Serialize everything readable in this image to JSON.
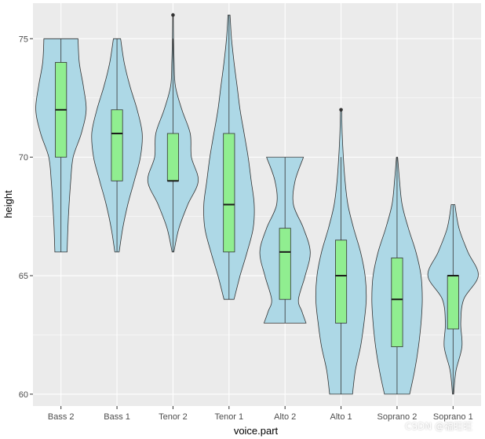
{
  "chart_data": {
    "type": "violin",
    "xlabel": "voice.part",
    "ylabel": "height",
    "ylim": [
      59.5,
      76.5
    ],
    "yticks": [
      60,
      65,
      70,
      75
    ],
    "categories": [
      "Bass 2",
      "Bass 1",
      "Tenor 2",
      "Tenor 1",
      "Alto 2",
      "Alto 1",
      "Soprano 2",
      "Soprano 1"
    ],
    "violin_fill": "#add8e6",
    "box_fill": "#90ee90",
    "panel_bg": "#ebebeb",
    "grid_color": "#ffffff",
    "groups": [
      {
        "name": "Bass 2",
        "min": 66,
        "max": 75,
        "q1": 70,
        "median": 72,
        "q3": 74,
        "whisker_low": 66,
        "whisker_high": 75,
        "outliers": [],
        "density": [
          [
            66,
            0.15
          ],
          [
            67,
            0.17
          ],
          [
            68,
            0.2
          ],
          [
            69,
            0.24
          ],
          [
            70,
            0.3
          ],
          [
            71,
            0.5
          ],
          [
            72,
            0.62
          ],
          [
            73,
            0.55
          ],
          [
            74,
            0.45
          ],
          [
            75,
            0.42
          ]
        ]
      },
      {
        "name": "Bass 1",
        "min": 66,
        "max": 75,
        "q1": 69,
        "median": 71,
        "q3": 72,
        "whisker_low": 66,
        "whisker_high": 75,
        "outliers": [],
        "density": [
          [
            66,
            0.06
          ],
          [
            67,
            0.16
          ],
          [
            68,
            0.3
          ],
          [
            69,
            0.48
          ],
          [
            70,
            0.65
          ],
          [
            71,
            0.7
          ],
          [
            72,
            0.56
          ],
          [
            73,
            0.36
          ],
          [
            74,
            0.2
          ],
          [
            75,
            0.1
          ]
        ]
      },
      {
        "name": "Tenor 2",
        "min": 66,
        "max": 76,
        "q1": 69,
        "median": 69,
        "q3": 71,
        "whisker_low": 66,
        "whisker_high": 75,
        "outliers": [
          76
        ],
        "density": [
          [
            66,
            0.03
          ],
          [
            67,
            0.2
          ],
          [
            68,
            0.5
          ],
          [
            69,
            0.85
          ],
          [
            70,
            0.62
          ],
          [
            71,
            0.58
          ],
          [
            72,
            0.3
          ],
          [
            73,
            0.08
          ],
          [
            74,
            0.04
          ],
          [
            75,
            0.02
          ],
          [
            76,
            0.01
          ]
        ]
      },
      {
        "name": "Tenor 1",
        "min": 64,
        "max": 76,
        "q1": 66,
        "median": 68,
        "q3": 71,
        "whisker_low": 64,
        "whisker_high": 76,
        "outliers": [],
        "density": [
          [
            64,
            0.1
          ],
          [
            65,
            0.22
          ],
          [
            66,
            0.36
          ],
          [
            67,
            0.48
          ],
          [
            68,
            0.5
          ],
          [
            69,
            0.44
          ],
          [
            70,
            0.38
          ],
          [
            71,
            0.3
          ],
          [
            72,
            0.22
          ],
          [
            73,
            0.16
          ],
          [
            74,
            0.1
          ],
          [
            75,
            0.05
          ],
          [
            76,
            0.02
          ]
        ]
      },
      {
        "name": "Alto 2",
        "min": 63,
        "max": 70,
        "q1": 64,
        "median": 66,
        "q3": 67,
        "whisker_low": 63,
        "whisker_high": 70,
        "outliers": [],
        "density": [
          [
            63,
            0.25
          ],
          [
            63.5,
            0.2
          ],
          [
            64,
            0.16
          ],
          [
            65,
            0.24
          ],
          [
            66,
            0.3
          ],
          [
            67,
            0.22
          ],
          [
            68,
            0.1
          ],
          [
            69,
            0.12
          ],
          [
            70,
            0.22
          ]
        ]
      },
      {
        "name": "Alto 1",
        "min": 60,
        "max": 72,
        "q1": 63,
        "median": 65,
        "q3": 66.5,
        "whisker_low": 60,
        "whisker_high": 70,
        "outliers": [
          72
        ],
        "density": [
          [
            60,
            0.2
          ],
          [
            61,
            0.25
          ],
          [
            62,
            0.34
          ],
          [
            63,
            0.4
          ],
          [
            64,
            0.44
          ],
          [
            65,
            0.42
          ],
          [
            66,
            0.34
          ],
          [
            67,
            0.22
          ],
          [
            68,
            0.12
          ],
          [
            69,
            0.07
          ],
          [
            70,
            0.04
          ],
          [
            71,
            0.02
          ],
          [
            72,
            0.01
          ]
        ]
      },
      {
        "name": "Soprano 2",
        "min": 60,
        "max": 70,
        "q1": 62,
        "median": 64,
        "q3": 65.75,
        "whisker_low": 60,
        "whisker_high": 70,
        "outliers": [],
        "density": [
          [
            60,
            0.2
          ],
          [
            61,
            0.28
          ],
          [
            62,
            0.34
          ],
          [
            63,
            0.38
          ],
          [
            64,
            0.4
          ],
          [
            65,
            0.38
          ],
          [
            66,
            0.3
          ],
          [
            67,
            0.18
          ],
          [
            68,
            0.08
          ],
          [
            69,
            0.04
          ],
          [
            70,
            0.01
          ]
        ]
      },
      {
        "name": "Soprano 1",
        "min": 60,
        "max": 68,
        "q1": 62.75,
        "median": 65,
        "q3": 65,
        "whisker_low": 60,
        "whisker_high": 68,
        "outliers": [],
        "density": [
          [
            60,
            0.02
          ],
          [
            61,
            0.1
          ],
          [
            62,
            0.3
          ],
          [
            63,
            0.26
          ],
          [
            64,
            0.36
          ],
          [
            65,
            0.85
          ],
          [
            66,
            0.5
          ],
          [
            67,
            0.2
          ],
          [
            68,
            0.06
          ]
        ]
      }
    ]
  },
  "watermark": "CSDN @福旺旺"
}
